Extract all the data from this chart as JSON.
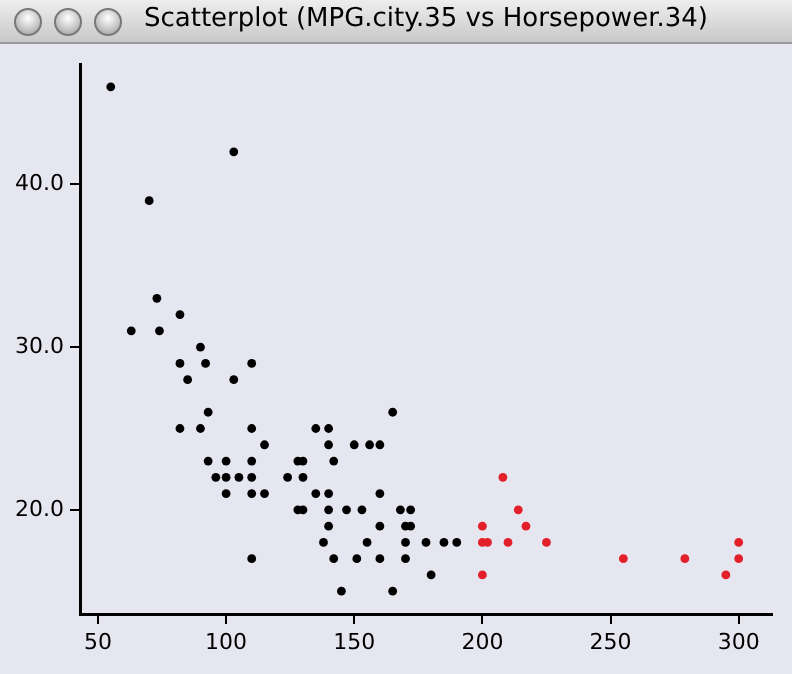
{
  "chart_data": {
    "type": "scatter",
    "title": "Scatterplot (MPG.city.35 vs Horsepower.34)",
    "xlim": [
      43,
      313
    ],
    "xticks": [
      50,
      100,
      150,
      200,
      250,
      300
    ],
    "ylim": [
      13.6,
      47.4
    ],
    "yticks": [
      {
        "value": 20,
        "label": "20.0"
      },
      {
        "value": 30,
        "label": "30.0"
      },
      {
        "value": 40,
        "label": "40.0"
      }
    ],
    "grid": false,
    "legend": false,
    "marker": "circle",
    "series": [
      {
        "color": "#000000",
        "x": [
          55,
          103,
          70,
          73,
          82,
          63,
          74,
          90,
          82,
          92,
          110,
          85,
          103,
          93,
          82,
          90,
          110,
          135,
          140,
          115,
          140,
          150,
          156,
          160,
          165,
          93,
          100,
          110,
          128,
          130,
          142,
          96,
          100,
          105,
          110,
          124,
          130,
          100,
          110,
          115,
          135,
          140,
          160,
          128,
          130,
          140,
          147,
          153,
          168,
          140,
          160,
          138,
          155,
          110,
          142,
          151,
          160,
          145,
          165,
          172,
          170,
          172,
          170,
          170,
          178,
          185,
          190,
          180
        ],
        "values": [
          46,
          42,
          39,
          33,
          32,
          31,
          31,
          30,
          29,
          29,
          29,
          28,
          28,
          26,
          25,
          25,
          25,
          25,
          25,
          24,
          24,
          24,
          24,
          24,
          26,
          23,
          23,
          23,
          23,
          23,
          23,
          22,
          22,
          22,
          22,
          22,
          22,
          21,
          21,
          21,
          21,
          21,
          21,
          20,
          20,
          20,
          20,
          20,
          20,
          19,
          19,
          18,
          18,
          17,
          17,
          17,
          17,
          15,
          15,
          20,
          19,
          19,
          18,
          17,
          18,
          18,
          18,
          16
        ]
      },
      {
        "color": "#e3202a",
        "x": [
          200,
          200,
          202,
          200,
          208,
          214,
          217,
          210,
          225,
          255,
          279,
          295,
          300,
          300
        ],
        "values": [
          19,
          18,
          18,
          16,
          22,
          20,
          19,
          18,
          18,
          17,
          17,
          16,
          18,
          17
        ]
      }
    ]
  }
}
